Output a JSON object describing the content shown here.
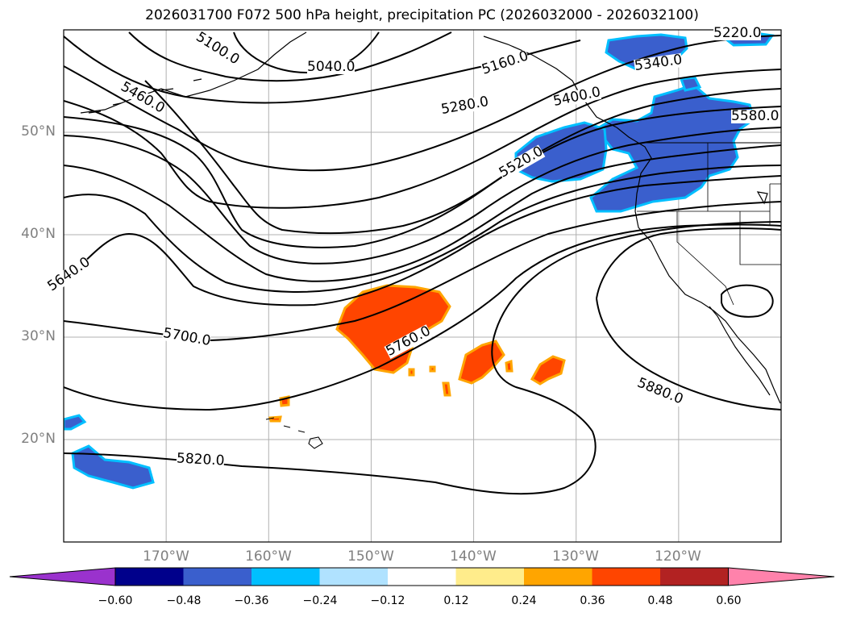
{
  "title": "2026031700 F072 500 hPa height, precipitation PC (2026032000 - 2026032100)",
  "map": {
    "lon_range": [
      -180,
      -110
    ],
    "lat_range": [
      10,
      60
    ],
    "lat_ticks": [
      {
        "value": 50,
        "label": "50°N"
      },
      {
        "value": 40,
        "label": "40°N"
      },
      {
        "value": 30,
        "label": "30°N"
      },
      {
        "value": 20,
        "label": "20°N"
      }
    ],
    "lon_ticks": [
      {
        "value": -170,
        "label": "170°W"
      },
      {
        "value": -160,
        "label": "160°W"
      },
      {
        "value": -150,
        "label": "150°W"
      },
      {
        "value": -140,
        "label": "140°W"
      },
      {
        "value": -130,
        "label": "130°W"
      },
      {
        "value": -120,
        "label": "120°W"
      }
    ],
    "grid": true,
    "contour_color": "#000000",
    "coastline_color": "#000000",
    "contour_labels": [
      "5100.0",
      "5040.0",
      "5160.0",
      "5220.0",
      "5340.0",
      "5400.0",
      "5280.0",
      "5460.0",
      "5520.0",
      "5580.0",
      "5640.0",
      "5700.0",
      "5760.0",
      "5880.0",
      "5820.0"
    ]
  },
  "colorbar": {
    "colors": [
      "#9a32cd",
      "#00008b",
      "#3a5fcd",
      "#00bfff",
      "#b0e2ff",
      "#ffffff",
      "#ffec8b",
      "#ffa500",
      "#ff4500",
      "#b22222",
      "#ff82ab"
    ],
    "ticks": [
      "−0.60",
      "−0.48",
      "−0.36",
      "−0.24",
      "−0.12",
      "0.12",
      "0.24",
      "0.36",
      "0.48",
      "0.60"
    ]
  }
}
